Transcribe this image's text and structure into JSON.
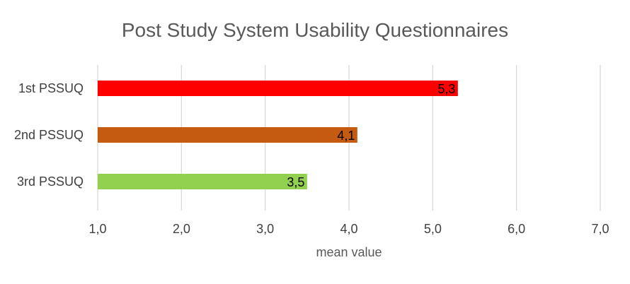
{
  "chart_data": {
    "type": "bar",
    "orientation": "horizontal",
    "title": "Post Study System Usability Questionnaires",
    "xlabel": "mean value",
    "ylabel": "",
    "xlim": [
      1.0,
      7.0
    ],
    "x_ticks": [
      1.0,
      2.0,
      3.0,
      4.0,
      5.0,
      6.0,
      7.0
    ],
    "x_tick_labels": [
      "1,0",
      "2,0",
      "3,0",
      "4,0",
      "5,0",
      "6,0",
      "7,0"
    ],
    "grid": "vertical",
    "legend": "none",
    "categories": [
      "1st PSSUQ",
      "2nd PSSUQ",
      "3rd PSSUQ"
    ],
    "values": [
      5.3,
      4.1,
      3.5
    ],
    "data_labels": [
      "5,3",
      "4,1",
      "3,5"
    ],
    "colors": [
      "#ff0000",
      "#c55a11",
      "#92d050"
    ]
  }
}
